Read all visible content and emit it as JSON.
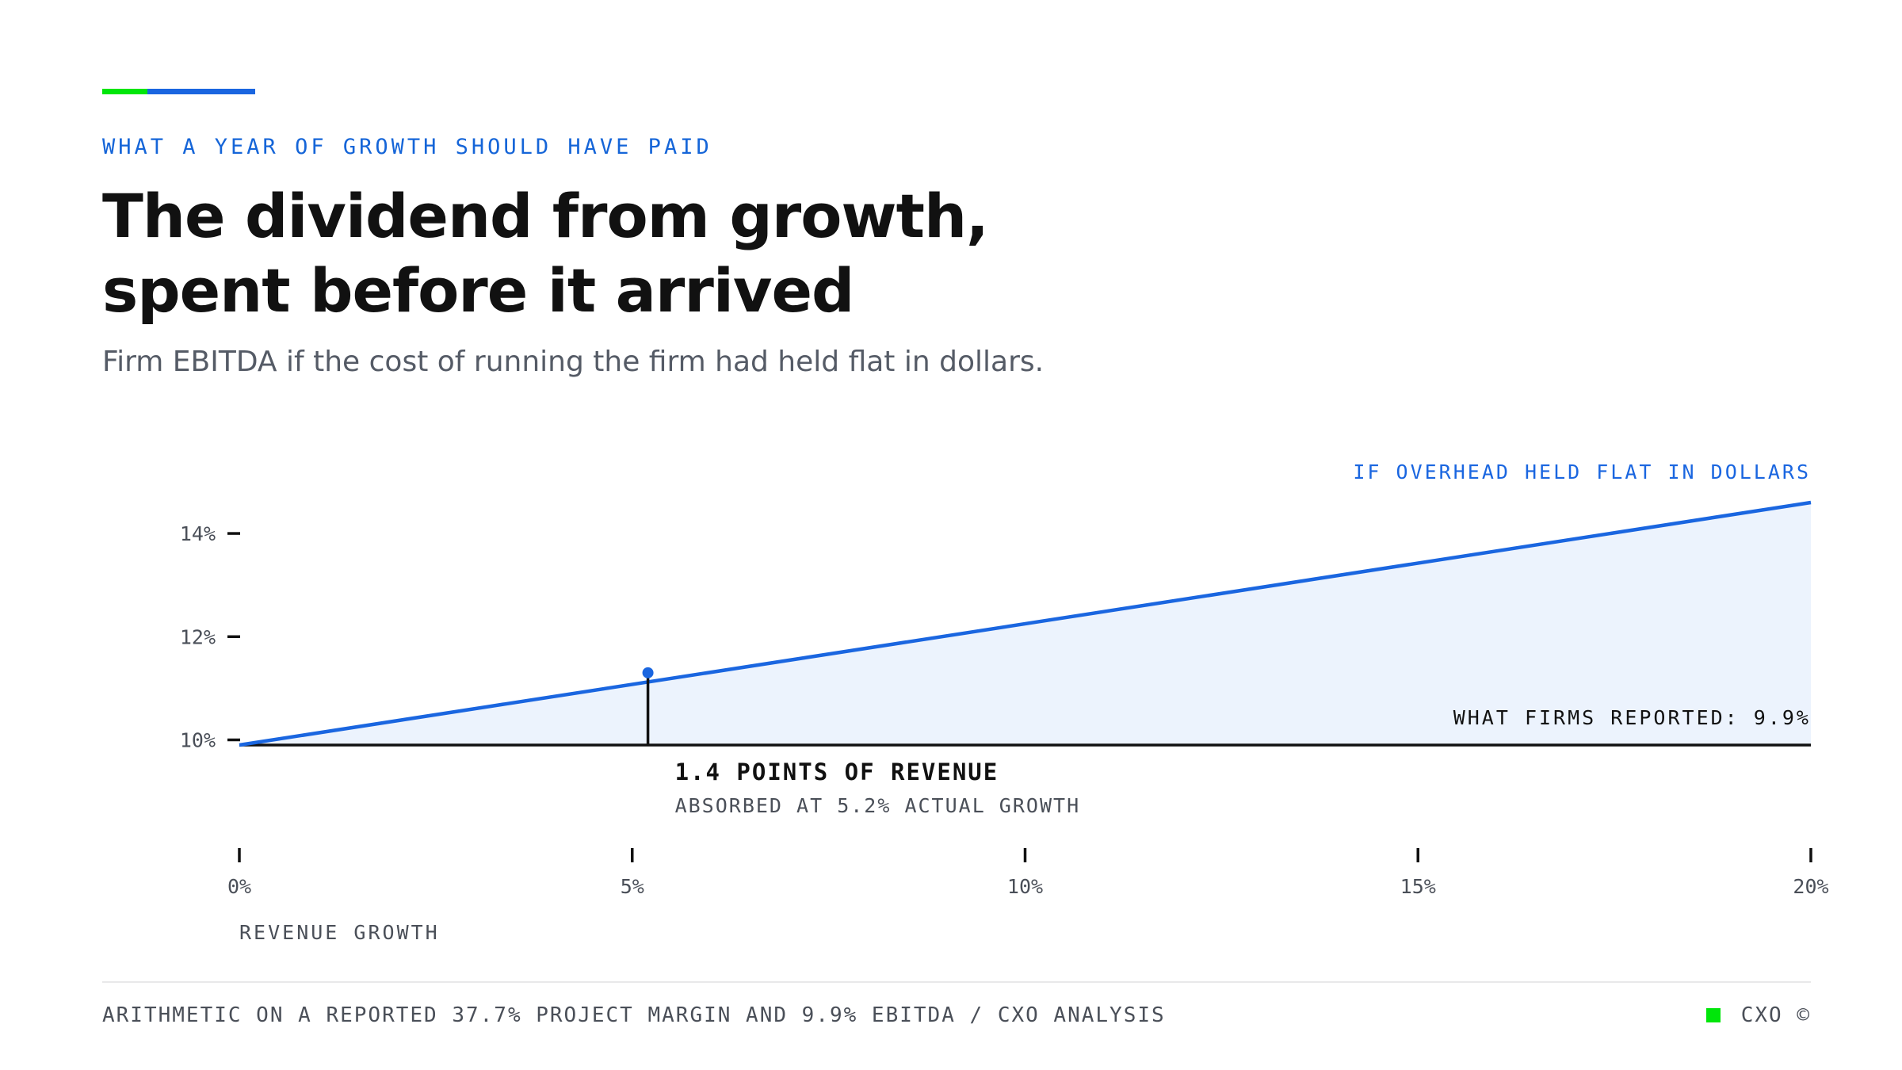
{
  "colors": {
    "accent_green": "#00e60a",
    "accent_blue": "#1a66e0",
    "series_line": "#1a66e0",
    "area_fill": "#ecf3fd",
    "axis": "#111111",
    "muted_text": "#4a4f58"
  },
  "header": {
    "eyebrow": "WHAT A YEAR OF GROWTH SHOULD HAVE PAID",
    "title_line1": "The dividend from growth,",
    "title_line2": "spent before it arrived",
    "subtitle": "Firm EBITDA if the cost of running the firm had held flat in dollars."
  },
  "chart_data": {
    "type": "area",
    "x": [
      0,
      20
    ],
    "series": [
      {
        "name": "IF OVERHEAD HELD FLAT IN DOLLARS",
        "values": [
          9.9,
          14.6
        ]
      }
    ],
    "baseline": {
      "label": "WHAT FIRMS REPORTED: 9.9%",
      "value": 9.9
    },
    "marker": {
      "x": 5.2,
      "y": 11.3,
      "label": "1.4 POINTS OF REVENUE",
      "sublabel": "ABSORBED AT 5.2% ACTUAL GROWTH"
    },
    "xlim": [
      0,
      20
    ],
    "ylim": [
      9.9,
      14.6
    ],
    "x_ticks": [
      {
        "value": 0,
        "label": "0%"
      },
      {
        "value": 5,
        "label": "5%"
      },
      {
        "value": 10,
        "label": "10%"
      },
      {
        "value": 15,
        "label": "15%"
      },
      {
        "value": 20,
        "label": "20%"
      }
    ],
    "y_ticks": [
      {
        "value": 10,
        "label": "10%"
      },
      {
        "value": 12,
        "label": "12%"
      },
      {
        "value": 14,
        "label": "14%"
      }
    ],
    "xlabel": "REVENUE GROWTH",
    "ylabel": "",
    "grid": false,
    "legend": "top-right"
  },
  "footer": {
    "source": "ARITHMETIC ON A REPORTED 37.7% PROJECT MARGIN AND 9.9% EBITDA / CXO ANALYSIS",
    "brand": "CXO ©"
  }
}
